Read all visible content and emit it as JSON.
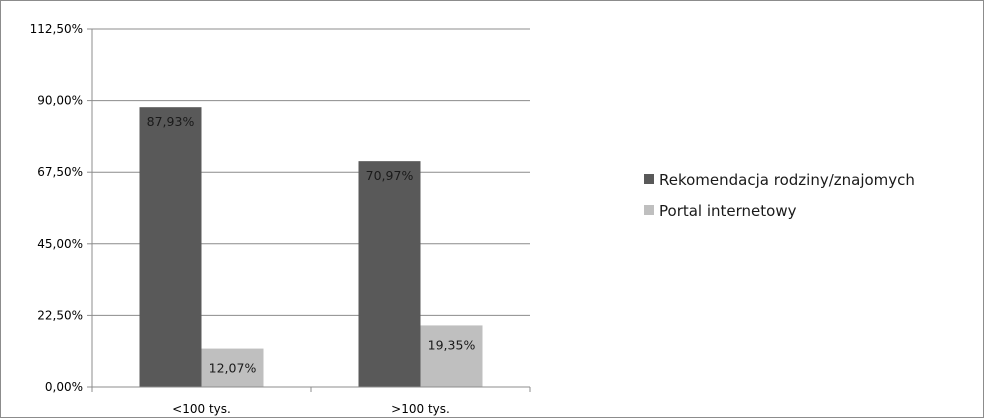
{
  "chart_data": {
    "type": "bar",
    "categories": [
      "<100 tys.",
      ">100 tys."
    ],
    "series": [
      {
        "name": "Rekomendacja rodziny/znajomych",
        "values": [
          87.93,
          70.97
        ],
        "labels": [
          "87,93%",
          "70,97%"
        ],
        "color": "#595959"
      },
      {
        "name": "Portal internetowy",
        "values": [
          12.07,
          19.35
        ],
        "labels": [
          "12,07%",
          "19,35%"
        ],
        "color": "#bfbfbf"
      }
    ],
    "y_ticks": [
      0,
      22.5,
      45,
      67.5,
      90,
      112.5
    ],
    "y_tick_labels": [
      "0,00%",
      "22,50%",
      "45,00%",
      "67,50%",
      "90,00%",
      "112,50%"
    ],
    "ylim": [
      0,
      112.5
    ],
    "grid": true,
    "legend_position": "right",
    "title": "",
    "xlabel": "",
    "ylabel": ""
  }
}
